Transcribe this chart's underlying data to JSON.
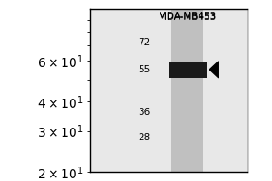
{
  "title": "MDA-MB453",
  "mw_markers": [
    72,
    55,
    36,
    28
  ],
  "band_mw": 55,
  "outer_bg": "#ffffff",
  "blot_bg": "#e8e8e8",
  "lane_color": "#c0c0c0",
  "band_dark_color": "#1a1a1a",
  "border_color": "#000000",
  "title_fontsize": 7.5,
  "marker_fontsize": 7.5,
  "ymin": 20,
  "ymax": 100,
  "fig_width": 3.0,
  "fig_height": 2.0
}
